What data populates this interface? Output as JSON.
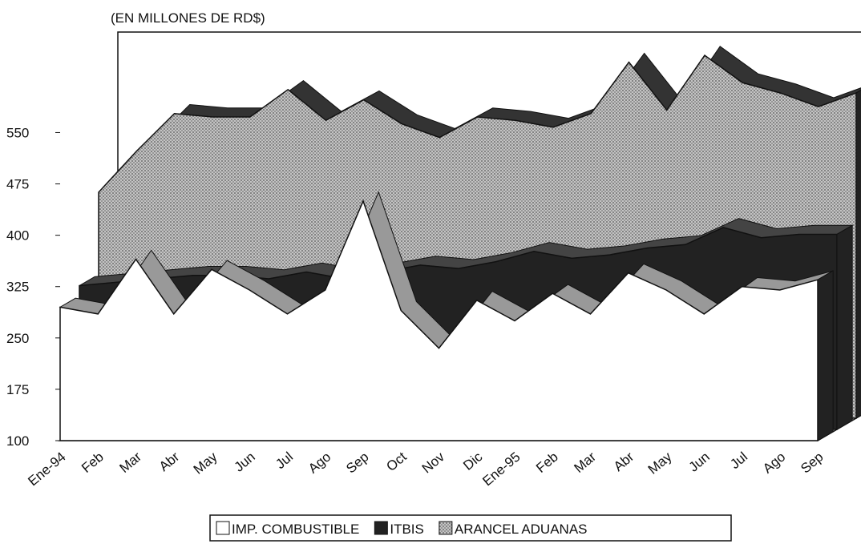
{
  "chart_data": {
    "type": "area3d",
    "title": "(EN MILLONES DE RD$)",
    "categories": [
      "Ene-94",
      "Feb",
      "Mar",
      "Abr",
      "May",
      "Jun",
      "Jul",
      "Ago",
      "Sep",
      "Oct",
      "Nov",
      "Dic",
      "Ene-95",
      "Feb",
      "Mar",
      "Abr",
      "May",
      "Jun",
      "Jul",
      "Ago",
      "Sep"
    ],
    "series": [
      {
        "name": "IMP. COMBUSTIBLE",
        "color": "#ffffff",
        "values": [
          295,
          285,
          365,
          285,
          350,
          320,
          285,
          320,
          450,
          290,
          235,
          305,
          275,
          315,
          285,
          345,
          320,
          285,
          325,
          320,
          335
        ]
      },
      {
        "name": "ITBIS",
        "color": "#222222",
        "values": [
          310,
          315,
          320,
          325,
          325,
          320,
          330,
          320,
          330,
          340,
          335,
          345,
          360,
          350,
          355,
          365,
          370,
          395,
          380,
          385,
          385
        ]
      },
      {
        "name": "ARANCEL ADUANAS",
        "color": "#b0b0b0",
        "values": [
          430,
          490,
          545,
          540,
          540,
          580,
          535,
          565,
          530,
          510,
          540,
          535,
          525,
          545,
          620,
          550,
          630,
          590,
          575,
          555,
          575
        ]
      }
    ],
    "ylim": [
      100,
      650
    ],
    "yticks": [
      100,
      175,
      250,
      325,
      400,
      475,
      550
    ],
    "legend": "bottom"
  }
}
